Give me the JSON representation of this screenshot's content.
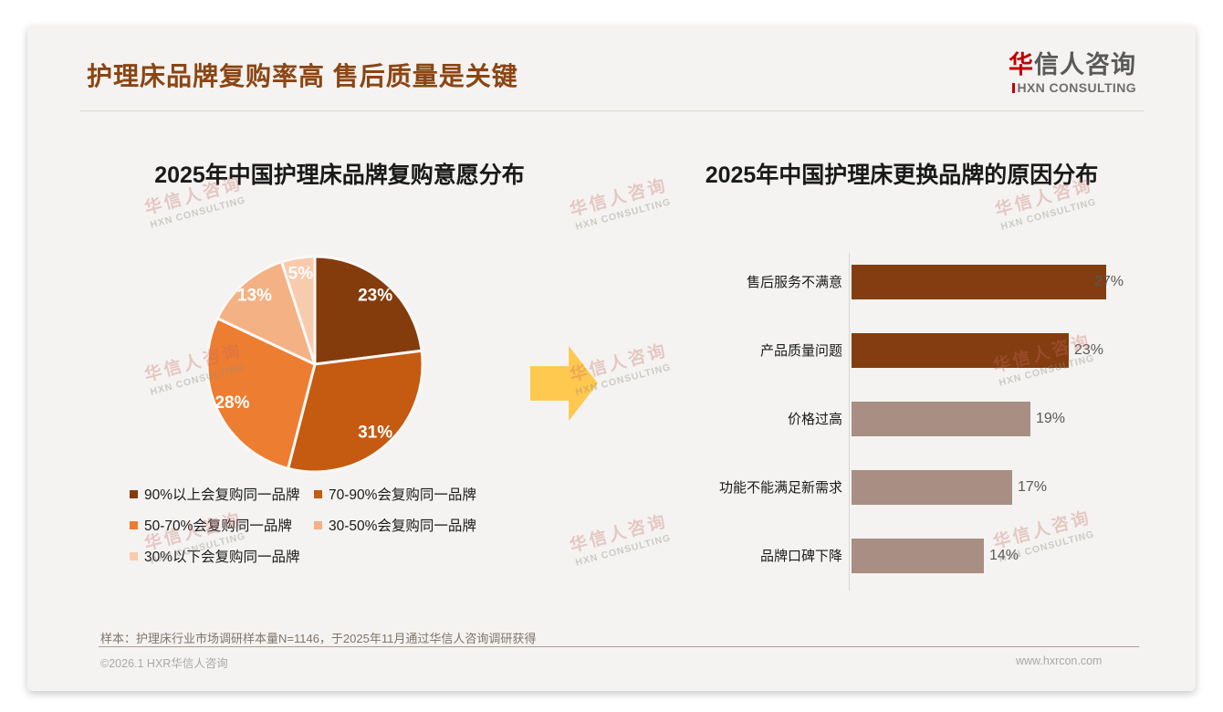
{
  "header": {
    "title": "护理床品牌复购率高 售后质量是关键",
    "logo": {
      "cn_red": "华",
      "cn_rest": "信人咨询",
      "en": "HXN CONSULTING",
      "red_color": "#C00000",
      "gray_color": "#595959"
    }
  },
  "watermark": {
    "line1": "华信人咨询",
    "line2": "HXN CONSULTING"
  },
  "accent_colors": {
    "title_brown": "#8B4513",
    "arrow_yellow": "#FFC84E",
    "card_background": "#F4F3F1"
  },
  "chart_data": [
    {
      "type": "pie",
      "title": "2025年中国护理床品牌复购意愿分布",
      "start_angle_deg": -90,
      "direction": "clockwise",
      "legend_position": "bottom",
      "slices": [
        {
          "label": "90%以上会复购同一品牌",
          "value": 23,
          "display": "23%",
          "color": "#843C0C"
        },
        {
          "label": "70-90%会复购同一品牌",
          "value": 31,
          "display": "31%",
          "color": "#C55A11"
        },
        {
          "label": "50-70%会复购同一品牌",
          "value": 28,
          "display": "28%",
          "color": "#ED7D31"
        },
        {
          "label": "30-50%会复购同一品牌",
          "value": 13,
          "display": "13%",
          "color": "#F4B183"
        },
        {
          "label": "30%以下会复购同一品牌",
          "value": 5,
          "display": "5%",
          "color": "#F8CBAD"
        }
      ]
    },
    {
      "type": "bar",
      "orientation": "horizontal",
      "title": "2025年中国护理床更换品牌的原因分布",
      "categories": [
        "售后服务不满意",
        "产品质量问题",
        "价格过高",
        "功能不能满足新需求",
        "品牌口碑下降"
      ],
      "values": [
        27,
        23,
        19,
        17,
        14
      ],
      "value_labels": [
        "27%",
        "23%",
        "19%",
        "17%",
        "14%"
      ],
      "colors": [
        "#833D10",
        "#833D10",
        "#A98E84",
        "#A98E84",
        "#A98E84"
      ],
      "xlim": [
        0,
        30
      ],
      "grid": false
    }
  ],
  "footnote": {
    "text": "样本：护理床行业市场调研样本量N=1146，于2025年11月通过华信人咨询调研获得"
  },
  "footer": {
    "copyright": "©2026.1 HXR华信人咨询",
    "website": "www.hxrcon.com"
  }
}
